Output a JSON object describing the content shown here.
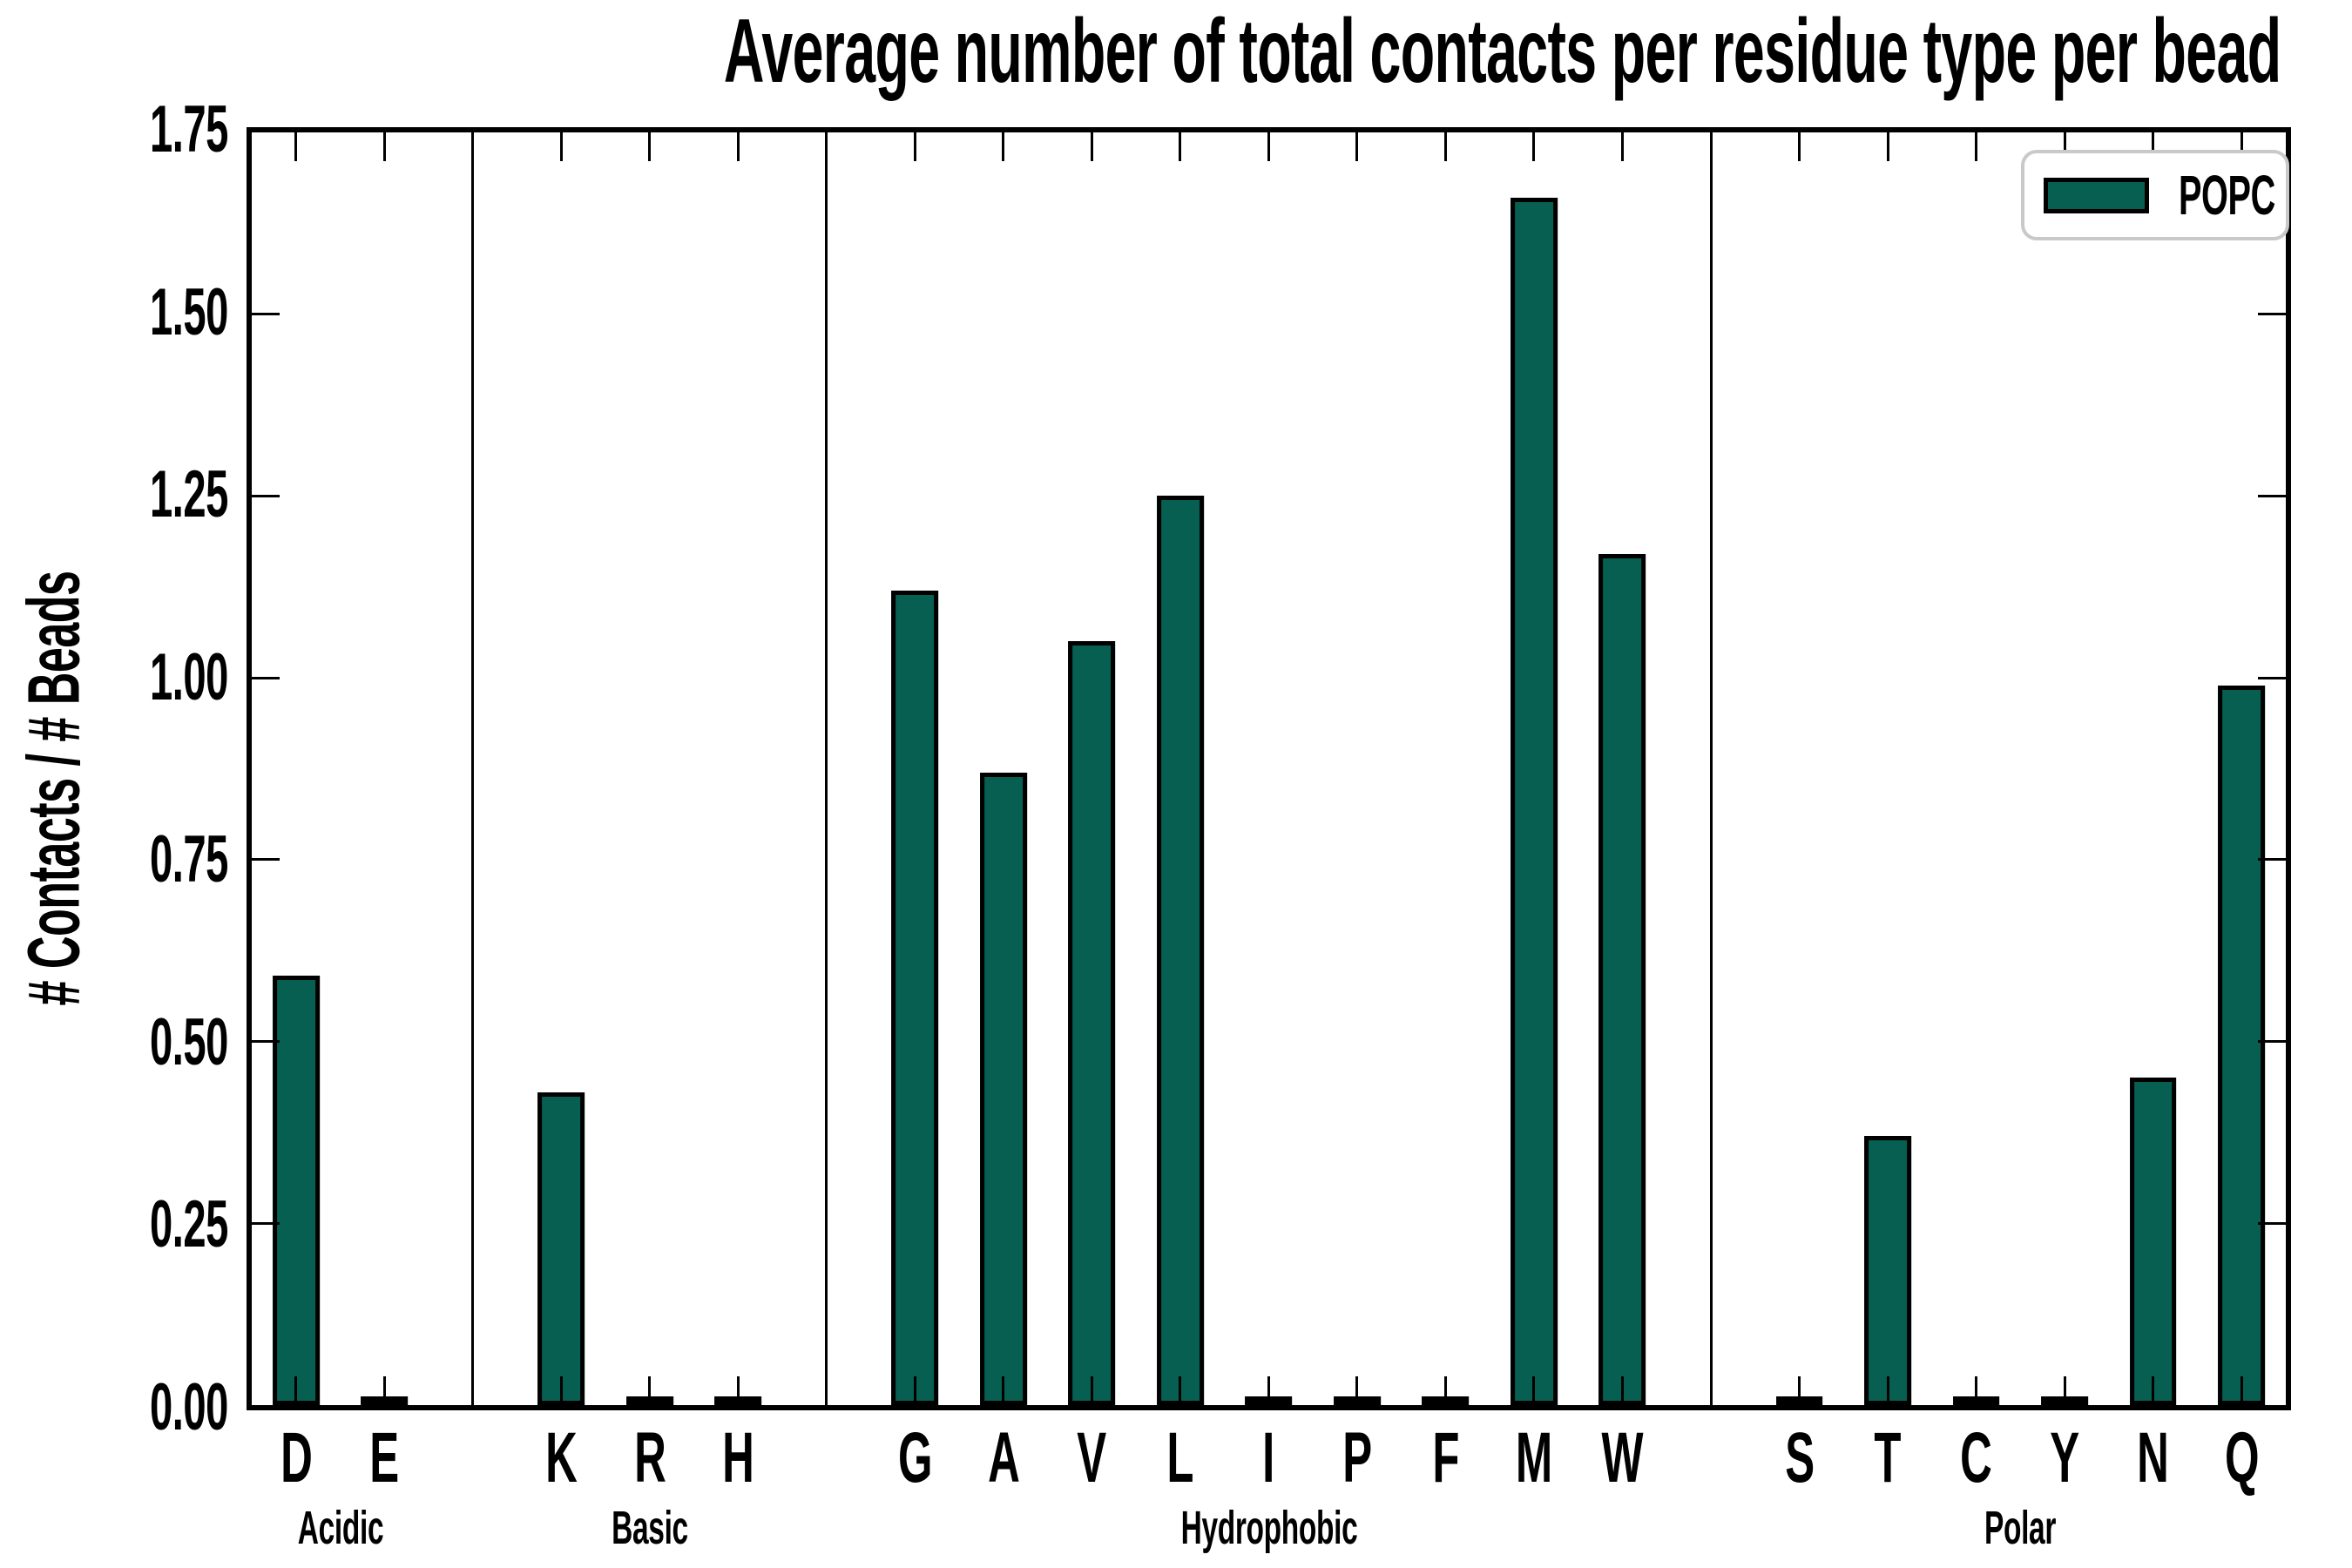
{
  "chart_data": {
    "type": "bar",
    "title": "Average number of total contacts per residue type per bead",
    "ylabel": "# Contacts / # Beads",
    "xlabel": "",
    "ylim": [
      0,
      1.75
    ],
    "yticks": [
      0.0,
      0.25,
      0.5,
      0.75,
      1.0,
      1.25,
      1.5,
      1.75
    ],
    "grid": false,
    "bar_color": "#065f50",
    "bar_edge_color": "#000000",
    "axis_color": "#000000",
    "legend": {
      "label": "POPC",
      "position": "upper-right",
      "border_color": "#c9c9c9"
    },
    "groups": [
      {
        "name": "Acidic",
        "residues": [
          {
            "label": "D",
            "value": 0.59
          },
          {
            "label": "E",
            "value": 0.006
          }
        ]
      },
      {
        "name": "Basic",
        "residues": [
          {
            "label": "K",
            "value": 0.43
          },
          {
            "label": "R",
            "value": 0.004
          },
          {
            "label": "H",
            "value": 0.004
          }
        ]
      },
      {
        "name": "Hydrophobic",
        "residues": [
          {
            "label": "G",
            "value": 1.12
          },
          {
            "label": "A",
            "value": 0.87
          },
          {
            "label": "V",
            "value": 1.05
          },
          {
            "label": "L",
            "value": 1.25
          },
          {
            "label": "I",
            "value": 0.004
          },
          {
            "label": "P",
            "value": 0.004
          },
          {
            "label": "F",
            "value": 0.005
          },
          {
            "label": "M",
            "value": 1.66
          },
          {
            "label": "W",
            "value": 1.17
          }
        ]
      },
      {
        "name": "Polar",
        "residues": [
          {
            "label": "S",
            "value": 0.004
          },
          {
            "label": "T",
            "value": 0.37
          },
          {
            "label": "C",
            "value": 0.004
          },
          {
            "label": "Y",
            "value": 0.005
          },
          {
            "label": "N",
            "value": 0.45
          },
          {
            "label": "Q",
            "value": 0.99
          }
        ]
      }
    ]
  }
}
